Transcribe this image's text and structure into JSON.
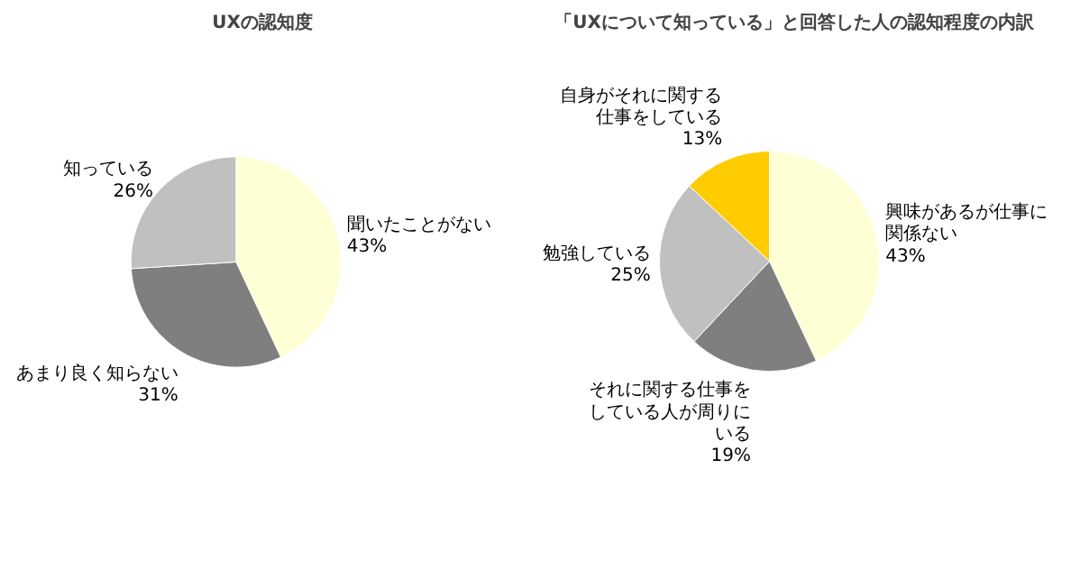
{
  "chart_data": [
    {
      "type": "pie",
      "title": "UXの認知度",
      "categories": [
        "聞いたことがない",
        "あまり良く知らない",
        "知っている"
      ],
      "values": [
        43,
        31,
        26
      ],
      "colors": [
        "#ffffd6",
        "#7f7f7f",
        "#c0c0c0"
      ],
      "value_labels": [
        "43%",
        "31%",
        "26%"
      ],
      "legend": false
    },
    {
      "type": "pie",
      "title": "「UXについて知っている」と回答した人の認知程度の内訳",
      "categories": [
        "興味があるが仕事に関係ない",
        "それに関する仕事をしている人が周りにいる",
        "勉強している",
        "自身がそれに関する仕事をしている"
      ],
      "values": [
        43,
        19,
        25,
        13
      ],
      "colors": [
        "#ffffd6",
        "#7f7f7f",
        "#c0c0c0",
        "#ffcc00"
      ],
      "value_labels": [
        "43%",
        "19%",
        "25%",
        "13%"
      ],
      "legend": false
    }
  ]
}
